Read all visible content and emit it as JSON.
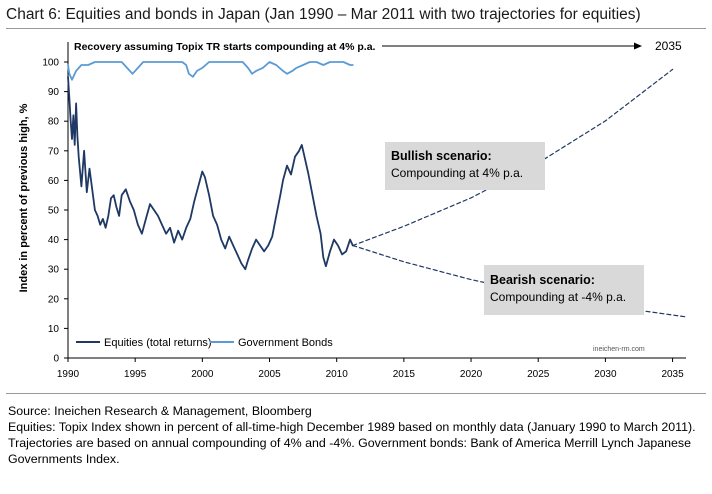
{
  "title": "Chart 6: Equities and bonds in Japan (Jan 1990 – Mar 2011 with two trajectories for equities)",
  "chart_data": {
    "type": "line",
    "title": "Chart 6: Equities and bonds in Japan (Jan 1990 – Mar 2011 with two trajectories for equities)",
    "ylabel": "Index in percent of previous high, %",
    "xlabel": "",
    "xlim": [
      1990,
      2036
    ],
    "ylim": [
      0,
      100
    ],
    "x_ticks": [
      1990,
      1995,
      2000,
      2005,
      2010,
      2015,
      2020,
      2025,
      2030,
      2035
    ],
    "y_ticks": [
      0,
      10,
      20,
      30,
      40,
      50,
      60,
      70,
      80,
      90,
      100
    ],
    "grid": false,
    "legend_position": "bottom-left",
    "series": [
      {
        "name": "Equities (total returns)",
        "color": "#1f3864",
        "style": "solid",
        "x": [
          1990.0,
          1990.1,
          1990.2,
          1990.3,
          1990.4,
          1990.5,
          1990.6,
          1990.7,
          1990.8,
          1991.0,
          1991.2,
          1991.4,
          1991.6,
          1991.8,
          1992.0,
          1992.2,
          1992.4,
          1992.6,
          1992.8,
          1993.0,
          1993.2,
          1993.4,
          1993.6,
          1993.8,
          1994.0,
          1994.3,
          1994.6,
          1994.9,
          1995.2,
          1995.5,
          1995.8,
          1996.1,
          1996.4,
          1996.7,
          1997.0,
          1997.3,
          1997.6,
          1997.9,
          1998.2,
          1998.5,
          1998.8,
          1999.1,
          1999.4,
          1999.7,
          2000.0,
          2000.2,
          2000.5,
          2000.8,
          2001.1,
          2001.4,
          2001.7,
          2002.0,
          2002.3,
          2002.6,
          2002.9,
          2003.2,
          2003.4,
          2003.7,
          2004.0,
          2004.3,
          2004.6,
          2004.9,
          2005.2,
          2005.5,
          2005.8,
          2006.0,
          2006.3,
          2006.6,
          2006.9,
          2007.2,
          2007.4,
          2007.6,
          2007.9,
          2008.2,
          2008.5,
          2008.8,
          2009.0,
          2009.2,
          2009.5,
          2009.8,
          2010.1,
          2010.4,
          2010.7,
          2011.0,
          2011.2
        ],
        "values": [
          95,
          88,
          80,
          74,
          82,
          72,
          86,
          75,
          68,
          58,
          70,
          56,
          64,
          57,
          50,
          48,
          45,
          47,
          44,
          48,
          54,
          55,
          51,
          48,
          55,
          57,
          53,
          50,
          45,
          42,
          47,
          52,
          50,
          48,
          45,
          42,
          44,
          39,
          43,
          40,
          44,
          47,
          53,
          58,
          63,
          61,
          55,
          48,
          45,
          40,
          37,
          41,
          38,
          35,
          32,
          30,
          33,
          37,
          40,
          38,
          36,
          38,
          41,
          48,
          55,
          60,
          65,
          62,
          68,
          70,
          72,
          68,
          62,
          55,
          48,
          42,
          34,
          31,
          36,
          40,
          38,
          35,
          36,
          40,
          38
        ]
      },
      {
        "name": "Government Bonds",
        "color": "#5b9bd5",
        "style": "solid",
        "x": [
          1990.0,
          1990.1,
          1990.3,
          1990.6,
          1991.0,
          1991.5,
          1992.0,
          1992.5,
          1993.0,
          1993.5,
          1994.0,
          1994.4,
          1994.8,
          1995.2,
          1995.6,
          1996.0,
          1996.5,
          1997.0,
          1997.5,
          1998.0,
          1998.5,
          1998.8,
          1999.0,
          1999.3,
          1999.6,
          2000.0,
          2000.5,
          2001.0,
          2001.5,
          2002.0,
          2002.5,
          2003.0,
          2003.4,
          2003.7,
          2004.0,
          2004.5,
          2005.0,
          2005.5,
          2006.0,
          2006.3,
          2006.7,
          2007.0,
          2007.5,
          2008.0,
          2008.5,
          2009.0,
          2009.5,
          2010.0,
          2010.5,
          2011.0,
          2011.2
        ],
        "values": [
          99,
          96,
          94,
          97,
          99,
          99,
          100,
          100,
          100,
          100,
          100,
          98,
          96,
          98,
          100,
          100,
          100,
          100,
          100,
          100,
          100,
          99,
          96,
          95,
          97,
          98,
          100,
          100,
          100,
          100,
          100,
          100,
          98,
          96,
          97,
          98,
          100,
          99,
          97,
          96,
          97,
          98,
          99,
          100,
          100,
          99,
          100,
          100,
          100,
          99,
          99
        ]
      },
      {
        "name": "Bullish scenario",
        "color": "#1f3864",
        "style": "dashed",
        "x": [
          2011.2,
          2015,
          2020,
          2025,
          2030,
          2035
        ],
        "values": [
          38,
          44.5,
          54.1,
          65.9,
          80.1,
          97.5
        ]
      },
      {
        "name": "Bearish scenario",
        "color": "#1f3864",
        "style": "dashed",
        "x": [
          2011.2,
          2015,
          2020,
          2025,
          2030,
          2036
        ],
        "values": [
          38,
          32.5,
          26.5,
          21.7,
          17.7,
          13.9
        ]
      }
    ],
    "annotations": {
      "recovery_text": "Recovery assuming Topix TR starts compounding at 4% p.a.",
      "recovery_year": "2035",
      "bullish_title": "Bullish scenario:",
      "bullish_text": "Compounding at 4% p.a.",
      "bearish_title": "Bearish scenario:",
      "bearish_text": "Compounding at -4% p.a.",
      "watermark": "ineichen-rm.com"
    }
  },
  "footer": {
    "source": "Source: Ineichen Research & Management, Bloomberg",
    "note": "Equities: Topix Index shown in percent of all-time-high December 1989 based on monthly data (January 1990 to March 2011). Trajectories are based on annual compounding of 4% and -4%. Government bonds: Bank of America Merrill Lynch Japanese Governments Index."
  }
}
